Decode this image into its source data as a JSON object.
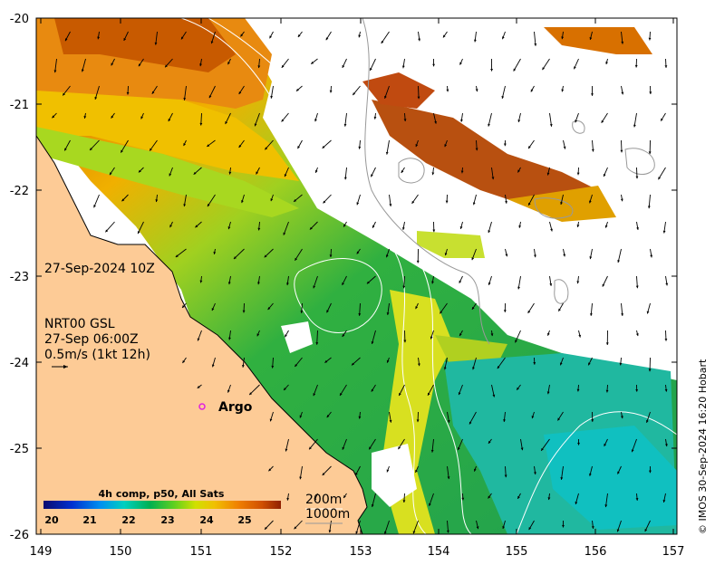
{
  "map": {
    "lon_ticks": [
      "149",
      "150",
      "151",
      "152",
      "153",
      "154",
      "155",
      "156",
      "157"
    ],
    "lat_ticks": [
      "-20",
      "-21",
      "-22",
      "-23",
      "-24",
      "-25",
      "-26"
    ],
    "valid_time": "27-Sep-2024 10Z",
    "current_source": "NRT00 GSL",
    "current_time": "27-Sep 06:00Z",
    "current_scale": "0.5m/s (1kt 12h)",
    "argo_label": "Argo",
    "contour_labels": [
      "200m",
      "1000m"
    ],
    "colorbar": {
      "title": "4h comp, p50, All Sats",
      "ticks": [
        "20",
        "21",
        "22",
        "23",
        "24",
        "25"
      ],
      "colors": [
        "#0a0a6e",
        "#0030d0",
        "#0090f0",
        "#00d0c0",
        "#00b050",
        "#60d020",
        "#d0e000",
        "#f0c000",
        "#f08000",
        "#d05000",
        "#902000"
      ]
    },
    "credit": "© IMOS 30-Sep-2024 16:20 Hobart",
    "land_color": "#fdcb96",
    "argo_color": "#e020e0"
  }
}
